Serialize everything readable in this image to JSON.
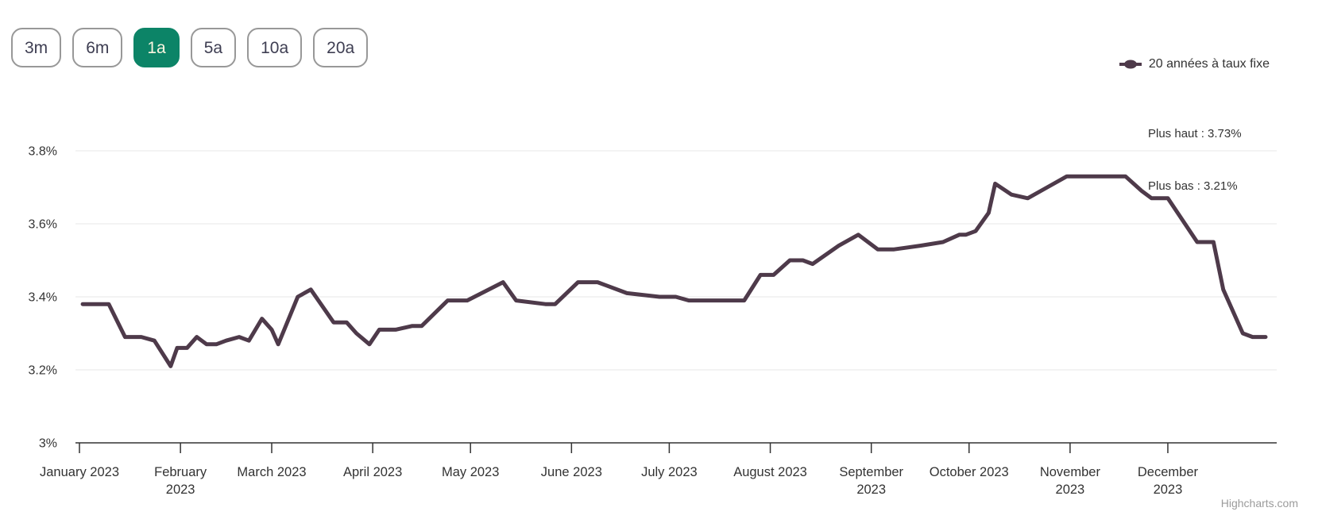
{
  "accent_color": "#0c8467",
  "range_selector": {
    "selected_index": 2,
    "buttons": [
      {
        "label": "3m"
      },
      {
        "label": "6m"
      },
      {
        "label": "1a"
      },
      {
        "label": "5a"
      },
      {
        "label": "10a"
      },
      {
        "label": "20a"
      }
    ]
  },
  "legend": {
    "series_label": "20 années à taux fixe",
    "stats": [
      "Plus haut : 3.73%",
      "Plus bas : 3.21%"
    ]
  },
  "credit": "Highcharts.com",
  "chart_data": {
    "type": "line",
    "title": "",
    "xlabel": "",
    "ylabel": "",
    "grid": true,
    "legend_position": "top-right",
    "series_color": "#4e3a4a",
    "axis_text_color": "#333333",
    "grid_color": "#e7e7e7",
    "y_axis": {
      "min": 3,
      "max": 3.85,
      "ticks": [
        {
          "value": 3,
          "label": "3%"
        },
        {
          "value": 3.2,
          "label": "3.2%"
        },
        {
          "value": 3.4,
          "label": "3.4%"
        },
        {
          "value": 3.6,
          "label": "3.6%"
        },
        {
          "value": 3.8,
          "label": "3.8%"
        }
      ]
    },
    "x_axis": {
      "unit": "day_of_year_2023",
      "months": [
        {
          "day": 1,
          "lines": [
            "January 2023"
          ]
        },
        {
          "day": 32,
          "lines": [
            "February",
            "2023"
          ]
        },
        {
          "day": 60,
          "lines": [
            "March 2023"
          ]
        },
        {
          "day": 91,
          "lines": [
            "April 2023"
          ]
        },
        {
          "day": 121,
          "lines": [
            "May 2023"
          ]
        },
        {
          "day": 152,
          "lines": [
            "June 2023"
          ]
        },
        {
          "day": 182,
          "lines": [
            "July 2023"
          ]
        },
        {
          "day": 213,
          "lines": [
            "August 2023"
          ]
        },
        {
          "day": 244,
          "lines": [
            "September",
            "2023"
          ]
        },
        {
          "day": 274,
          "lines": [
            "October 2023"
          ]
        },
        {
          "day": 305,
          "lines": [
            "November",
            "2023"
          ]
        },
        {
          "day": 335,
          "lines": [
            "December",
            "2023"
          ]
        }
      ]
    },
    "series": [
      {
        "name": "20 années à taux fixe",
        "max": 3.73,
        "min": 3.21,
        "points": [
          [
            2,
            3.38
          ],
          [
            6,
            3.38
          ],
          [
            10,
            3.38
          ],
          [
            15,
            3.29
          ],
          [
            20,
            3.29
          ],
          [
            24,
            3.28
          ],
          [
            29,
            3.21
          ],
          [
            31,
            3.26
          ],
          [
            34,
            3.26
          ],
          [
            37,
            3.29
          ],
          [
            40,
            3.27
          ],
          [
            43,
            3.27
          ],
          [
            46,
            3.28
          ],
          [
            50,
            3.29
          ],
          [
            53,
            3.28
          ],
          [
            57,
            3.34
          ],
          [
            60,
            3.31
          ],
          [
            62,
            3.27
          ],
          [
            68,
            3.4
          ],
          [
            72,
            3.42
          ],
          [
            79,
            3.33
          ],
          [
            83,
            3.33
          ],
          [
            86,
            3.3
          ],
          [
            90,
            3.27
          ],
          [
            93,
            3.31
          ],
          [
            98,
            3.31
          ],
          [
            103,
            3.32
          ],
          [
            106,
            3.32
          ],
          [
            114,
            3.39
          ],
          [
            120,
            3.39
          ],
          [
            131,
            3.44
          ],
          [
            135,
            3.39
          ],
          [
            144,
            3.38
          ],
          [
            147,
            3.38
          ],
          [
            154,
            3.44
          ],
          [
            160,
            3.44
          ],
          [
            169,
            3.41
          ],
          [
            179,
            3.4
          ],
          [
            184,
            3.4
          ],
          [
            188,
            3.39
          ],
          [
            201,
            3.39
          ],
          [
            205,
            3.39
          ],
          [
            210,
            3.46
          ],
          [
            214,
            3.46
          ],
          [
            219,
            3.5
          ],
          [
            223,
            3.5
          ],
          [
            226,
            3.49
          ],
          [
            234,
            3.54
          ],
          [
            240,
            3.57
          ],
          [
            246,
            3.53
          ],
          [
            251,
            3.53
          ],
          [
            259,
            3.54
          ],
          [
            266,
            3.55
          ],
          [
            271,
            3.57
          ],
          [
            273,
            3.57
          ],
          [
            276,
            3.58
          ],
          [
            280,
            3.63
          ],
          [
            282,
            3.71
          ],
          [
            287,
            3.68
          ],
          [
            292,
            3.67
          ],
          [
            298,
            3.7
          ],
          [
            304,
            3.73
          ],
          [
            313,
            3.73
          ],
          [
            322,
            3.73
          ],
          [
            327,
            3.69
          ],
          [
            330,
            3.67
          ],
          [
            335,
            3.67
          ],
          [
            344,
            3.55
          ],
          [
            349,
            3.55
          ],
          [
            352,
            3.42
          ],
          [
            358,
            3.3
          ],
          [
            361,
            3.29
          ],
          [
            365,
            3.29
          ]
        ]
      }
    ]
  }
}
